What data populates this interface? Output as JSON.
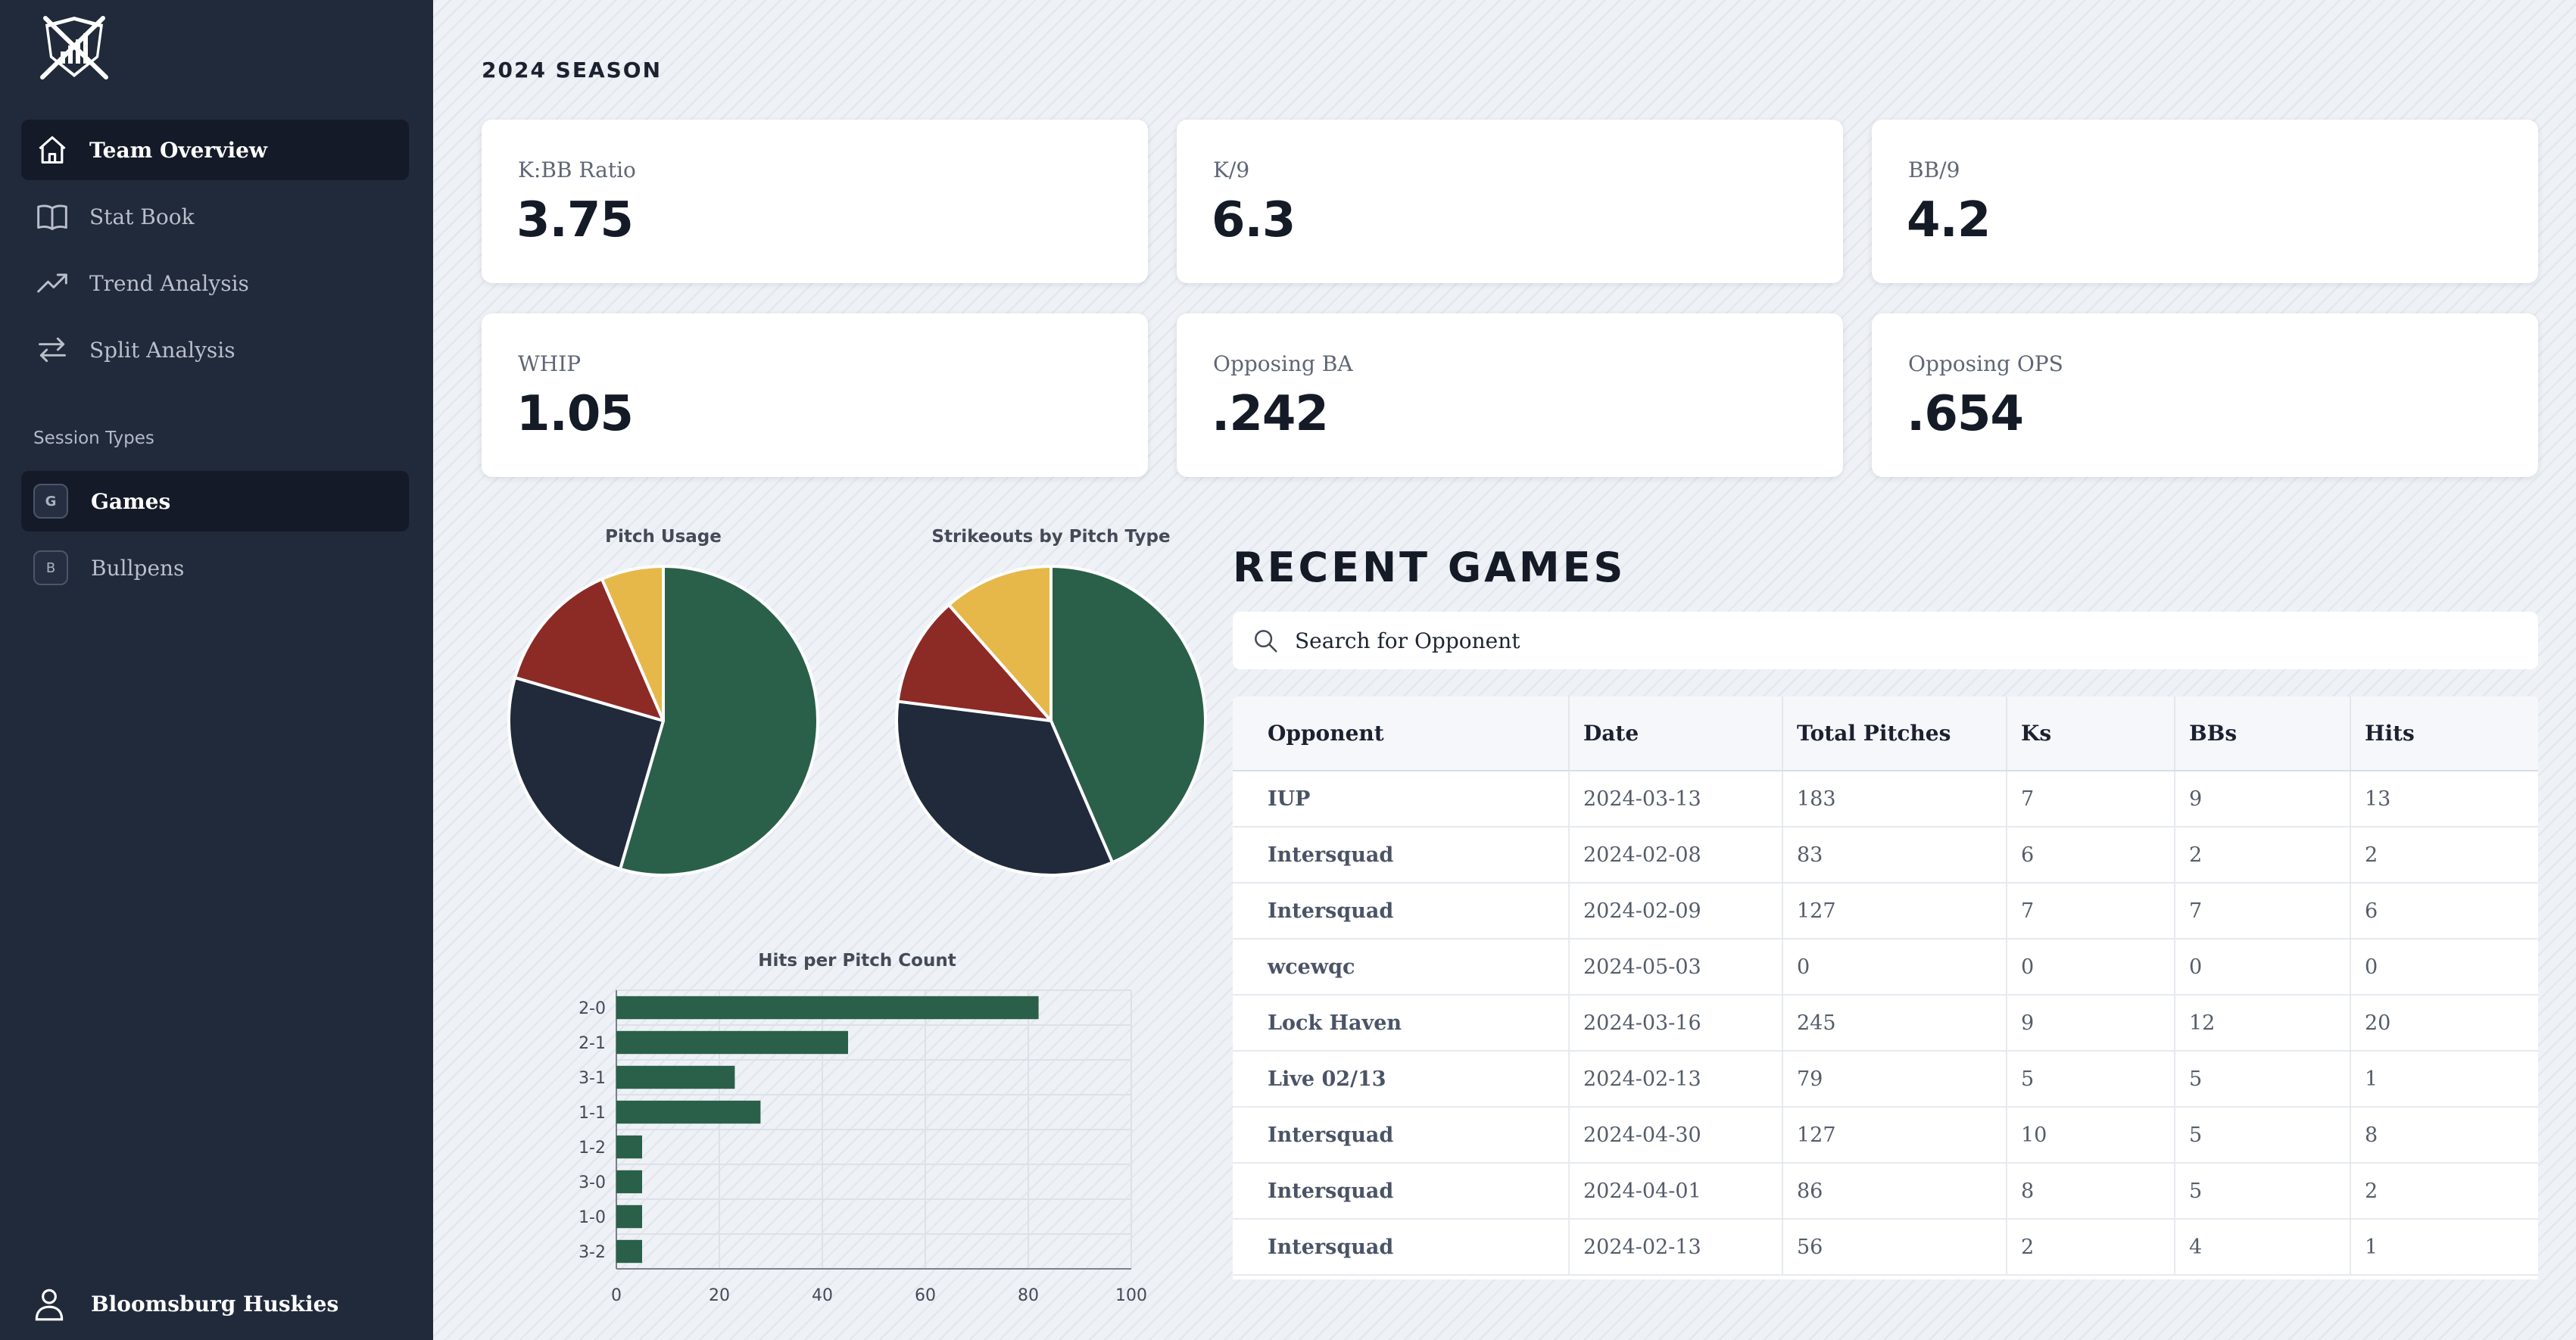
{
  "sidebar": {
    "nav": [
      {
        "label": "Team Overview",
        "icon": "home-icon",
        "active": true
      },
      {
        "label": "Stat Book",
        "icon": "book-icon",
        "active": false
      },
      {
        "label": "Trend Analysis",
        "icon": "trending-up-icon",
        "active": false
      },
      {
        "label": "Split Analysis",
        "icon": "arrows-swap-icon",
        "active": false
      }
    ],
    "section_label": "Session Types",
    "sessions": [
      {
        "badge": "G",
        "label": "Games",
        "active": true
      },
      {
        "badge": "B",
        "label": "Bullpens",
        "active": false
      }
    ],
    "user": "Bloomsburg Huskies"
  },
  "main": {
    "season": "2024 SEASON",
    "stats": [
      {
        "label": "K:BB Ratio",
        "value": "3.75"
      },
      {
        "label": "K/9",
        "value": "6.3"
      },
      {
        "label": "BB/9",
        "value": "4.2"
      },
      {
        "label": "WHIP",
        "value": "1.05"
      },
      {
        "label": "Opposing BA",
        "value": ".242"
      },
      {
        "label": "Opposing OPS",
        "value": ".654"
      }
    ],
    "recent_games": {
      "title": "RECENT GAMES",
      "search_placeholder": "Search for Opponent",
      "columns": [
        "Opponent",
        "Date",
        "Total Pitches",
        "Ks",
        "BBs",
        "Hits"
      ],
      "rows": [
        [
          "IUP",
          "2024-03-13",
          "183",
          "7",
          "9",
          "13"
        ],
        [
          "Intersquad",
          "2024-02-08",
          "83",
          "6",
          "2",
          "2"
        ],
        [
          "Intersquad",
          "2024-02-09",
          "127",
          "7",
          "7",
          "6"
        ],
        [
          "wcewqc",
          "2024-05-03",
          "0",
          "0",
          "0",
          "0"
        ],
        [
          "Lock Haven",
          "2024-03-16",
          "245",
          "9",
          "12",
          "20"
        ],
        [
          "Live 02/13",
          "2024-02-13",
          "79",
          "5",
          "5",
          "1"
        ],
        [
          "Intersquad",
          "2024-04-30",
          "127",
          "10",
          "5",
          "8"
        ],
        [
          "Intersquad",
          "2024-04-01",
          "86",
          "8",
          "5",
          "2"
        ],
        [
          "Intersquad",
          "2024-02-13",
          "56",
          "2",
          "4",
          "1"
        ]
      ]
    }
  },
  "colors": {
    "green": "#2a6049",
    "navy": "#212a3b",
    "red": "#8c2a25",
    "gold": "#e6b84a"
  },
  "chart_data": [
    {
      "type": "pie",
      "title": "Pitch Usage",
      "slices": [
        {
          "value": 54.5,
          "color": "#2a6049"
        },
        {
          "value": 25.0,
          "color": "#212a3b"
        },
        {
          "value": 14.0,
          "color": "#8c2a25"
        },
        {
          "value": 6.5,
          "color": "#e6b84a"
        }
      ]
    },
    {
      "type": "pie",
      "title": "Strikeouts by Pitch Type",
      "slices": [
        {
          "value": 43.5,
          "color": "#2a6049"
        },
        {
          "value": 33.5,
          "color": "#212a3b"
        },
        {
          "value": 11.5,
          "color": "#8c2a25"
        },
        {
          "value": 11.5,
          "color": "#e6b84a"
        }
      ]
    },
    {
      "type": "bar",
      "orientation": "horizontal",
      "title": "Hits per Pitch Count",
      "categories": [
        "2-0",
        "2-1",
        "3-1",
        "1-1",
        "1-2",
        "3-0",
        "1-0",
        "3-2"
      ],
      "values": [
        82,
        45,
        23,
        28,
        5,
        5,
        5,
        5
      ],
      "xlim": [
        0,
        100
      ],
      "xticks": [
        "0",
        "20",
        "40",
        "60",
        "80",
        "100"
      ],
      "color": "#2a6049"
    }
  ]
}
